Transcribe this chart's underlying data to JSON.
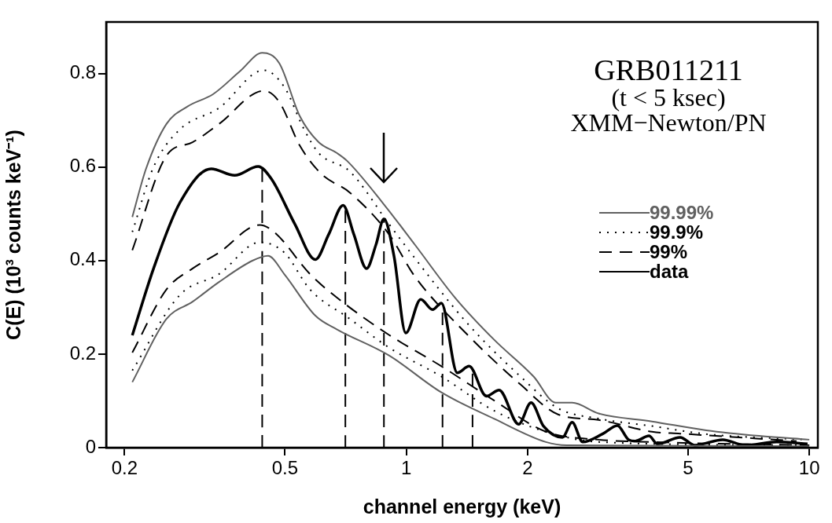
{
  "chart_data": {
    "type": "line",
    "xlabel": "channel energy (keV)",
    "ylabel": "C(E) (10³ counts keV⁻¹)",
    "annotations": [
      "GRB011211",
      "(t < 5 ksec)",
      "XMM−Newton/PN"
    ],
    "log": "x",
    "xlim": [
      0.18,
      10.5
    ],
    "ylim": [
      0,
      0.91
    ],
    "xticks": [
      0.2,
      0.5,
      1,
      2,
      5,
      10
    ],
    "yticks": [
      0,
      0.2,
      0.4,
      0.6,
      0.8
    ],
    "grid": false,
    "legend": "right",
    "marker": "none",
    "series": [
      {
        "name": "99.99%",
        "color": "#606060",
        "line_style": "solid",
        "x": [
          0.209,
          0.226,
          0.254,
          0.286,
          0.332,
          0.387,
          0.439,
          0.484,
          0.544,
          0.606,
          0.672,
          0.713,
          0.88,
          1.05,
          1.32,
          1.65,
          2.07,
          2.35,
          2.58,
          3.0,
          4.07,
          5.55,
          7.5,
          10
        ],
        "values": [
          0.493,
          0.596,
          0.692,
          0.729,
          0.756,
          0.805,
          0.844,
          0.822,
          0.709,
          0.653,
          0.63,
          0.613,
          0.52,
          0.434,
          0.321,
          0.231,
          0.152,
          0.096,
          0.096,
          0.073,
          0.056,
          0.037,
          0.025,
          0.017
        ]
      },
      {
        "color": "#606060",
        "line_style": "solid",
        "x": [
          0.209,
          0.254,
          0.295,
          0.343,
          0.416,
          0.454,
          0.498,
          0.595,
          0.672,
          0.906,
          1.222,
          1.65,
          2.22,
          2.5,
          10
        ],
        "values": [
          0.14,
          0.275,
          0.312,
          0.354,
          0.4,
          0.41,
          0.371,
          0.282,
          0.253,
          0.197,
          0.118,
          0.062,
          0.012,
          0.005,
          0.003
        ]
      },
      {
        "name": "99.9%",
        "color": "#000000",
        "line_style": "dotted",
        "x": [
          0.209,
          0.236,
          0.274,
          0.343,
          0.443,
          0.498,
          0.558,
          0.606,
          0.725,
          0.906,
          1.05,
          1.42,
          1.92,
          2.38,
          3.0,
          4.07,
          5.55,
          9.8
        ],
        "values": [
          0.461,
          0.6,
          0.68,
          0.726,
          0.807,
          0.771,
          0.68,
          0.63,
          0.59,
          0.478,
          0.405,
          0.265,
          0.152,
          0.084,
          0.062,
          0.046,
          0.029,
          0.017
        ]
      },
      {
        "color": "#000000",
        "line_style": "dotted",
        "x": [
          0.209,
          0.274,
          0.343,
          0.433,
          0.498,
          0.577,
          0.725,
          0.906,
          1.222,
          1.65,
          2.22,
          3.0,
          10
        ],
        "values": [
          0.165,
          0.326,
          0.371,
          0.439,
          0.417,
          0.338,
          0.275,
          0.214,
          0.152,
          0.079,
          0.034,
          0.012,
          0.005
        ]
      },
      {
        "name": "99%",
        "color": "#000000",
        "line_style": "dashed",
        "x": [
          0.209,
          0.254,
          0.295,
          0.343,
          0.443,
          0.484,
          0.544,
          0.614,
          0.725,
          0.906,
          1.05,
          1.42,
          1.92,
          2.38,
          3.0,
          4.07,
          4.78,
          9.3
        ],
        "values": [
          0.422,
          0.624,
          0.653,
          0.692,
          0.763,
          0.739,
          0.646,
          0.586,
          0.545,
          0.456,
          0.366,
          0.241,
          0.135,
          0.071,
          0.059,
          0.034,
          0.03,
          0.014
        ]
      },
      {
        "color": "#000000",
        "line_style": "dashed",
        "x": [
          0.209,
          0.254,
          0.295,
          0.343,
          0.433,
          0.47,
          0.577,
          0.672,
          0.906,
          1.222,
          1.65,
          2.22,
          3.0,
          4.07,
          10
        ],
        "values": [
          0.203,
          0.338,
          0.383,
          0.417,
          0.476,
          0.461,
          0.371,
          0.321,
          0.241,
          0.174,
          0.101,
          0.034,
          0.017,
          0.012,
          0.005
        ]
      },
      {
        "name": "data",
        "color": "#000000",
        "line_style": "solid",
        "x": [
          0.209,
          0.236,
          0.274,
          0.328,
          0.375,
          0.429,
          0.463,
          0.529,
          0.595,
          0.642,
          0.697,
          0.741,
          0.797,
          0.841,
          0.88,
          0.932,
          0.997,
          1.086,
          1.162,
          1.222,
          1.338,
          1.432,
          1.58,
          1.7,
          1.9,
          2.04,
          2.19,
          2.44,
          2.58,
          2.74,
          3.08,
          3.34,
          3.56,
          3.7,
          4.0,
          4.2,
          4.78,
          5.2,
          6.1,
          6.9,
          8.3,
          9.9
        ],
        "values": [
          0.24,
          0.383,
          0.523,
          0.596,
          0.582,
          0.601,
          0.574,
          0.478,
          0.402,
          0.456,
          0.518,
          0.456,
          0.383,
          0.434,
          0.489,
          0.41,
          0.245,
          0.317,
          0.295,
          0.309,
          0.16,
          0.174,
          0.11,
          0.123,
          0.05,
          0.096,
          0.046,
          0.022,
          0.054,
          0.012,
          0.03,
          0.047,
          0.017,
          0.014,
          0.025,
          0.008,
          0.022,
          0.005,
          0.017,
          0.005,
          0.012,
          0.008
        ]
      },
      {
        "color": "#000000",
        "line_style": "dashed",
        "x": [
          0.439,
          0.439
        ],
        "values": [
          0,
          0.6
        ]
      },
      {
        "color": "#000000",
        "line_style": "dashed",
        "x": [
          0.706,
          0.706
        ],
        "values": [
          0,
          0.515
        ]
      },
      {
        "color": "#000000",
        "line_style": "dashed",
        "x": [
          0.88,
          0.88
        ],
        "values": [
          0,
          0.489
        ]
      },
      {
        "color": "#000000",
        "line_style": "dashed",
        "x": [
          1.23,
          1.23
        ],
        "values": [
          0,
          0.309
        ]
      },
      {
        "color": "#000000",
        "line_style": "dashed",
        "x": [
          1.46,
          1.46
        ],
        "values": [
          0,
          0.169
        ]
      }
    ]
  }
}
